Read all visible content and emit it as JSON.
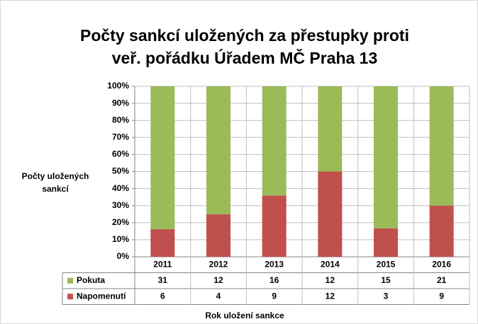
{
  "chart_data": {
    "type": "bar",
    "stacking": "percent",
    "title": [
      "Počty sankcí uložených za přestupky proti",
      "veř. pořádku Úřadem MČ Praha 13"
    ],
    "y_label": [
      "Počty uložených",
      "sankcí"
    ],
    "x_label": "Rok uložení sankce",
    "categories": [
      "2011",
      "2012",
      "2013",
      "2014",
      "2015",
      "2016"
    ],
    "series": [
      {
        "name": "Pokuta",
        "color": "#9bbb59",
        "values": [
          31,
          12,
          16,
          12,
          15,
          21
        ]
      },
      {
        "name": "Napomenutí",
        "color": "#c0504d",
        "values": [
          6,
          4,
          9,
          12,
          3,
          9
        ]
      }
    ],
    "ylim": [
      0,
      100
    ],
    "yticks": [
      {
        "value": 0,
        "label": "0%"
      },
      {
        "value": 10,
        "label": "10%"
      },
      {
        "value": 20,
        "label": "20%"
      },
      {
        "value": 30,
        "label": "30%"
      },
      {
        "value": 40,
        "label": "40%"
      },
      {
        "value": 50,
        "label": "50%"
      },
      {
        "value": 60,
        "label": "60%"
      },
      {
        "value": 70,
        "label": "70%"
      },
      {
        "value": 80,
        "label": "80%"
      },
      {
        "value": 90,
        "label": "90%"
      },
      {
        "value": 100,
        "label": "100%"
      }
    ],
    "grid": true,
    "data_table": true
  }
}
